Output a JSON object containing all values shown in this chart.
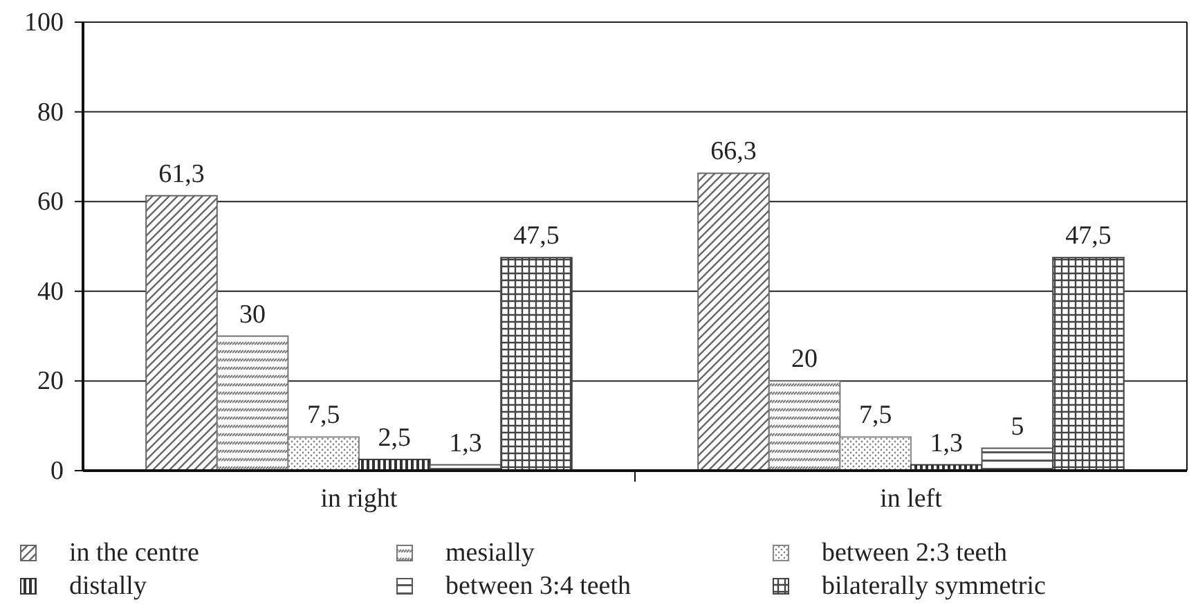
{
  "chart_data": {
    "type": "bar",
    "categories": [
      "in right",
      "in left"
    ],
    "series": [
      {
        "name": "in the centre",
        "color": "#666666",
        "values": [
          61.3,
          66.3
        ],
        "value_labels": [
          "61,3",
          "66,3"
        ]
      },
      {
        "name": "mesially",
        "color": "#777777",
        "values": [
          30,
          20
        ],
        "value_labels": [
          "30",
          "20"
        ]
      },
      {
        "name": "between 2:3 teeth",
        "color": "#888888",
        "values": [
          7.5,
          7.5
        ],
        "value_labels": [
          "7,5",
          "7,5"
        ]
      },
      {
        "name": "distally",
        "color": "#333333",
        "values": [
          2.5,
          1.3
        ],
        "value_labels": [
          "2,5",
          "1,3"
        ]
      },
      {
        "name": "between 3:4 teeth",
        "color": "#555555",
        "values": [
          1.3,
          5
        ],
        "value_labels": [
          "1,3",
          "5"
        ]
      },
      {
        "name": "bilaterally symmetric",
        "color": "#444444",
        "values": [
          47.5,
          47.5
        ],
        "value_labels": [
          "47,5",
          "47,5"
        ]
      }
    ],
    "ylim": [
      0,
      100
    ],
    "yticks": [
      0,
      20,
      40,
      60,
      80,
      100
    ],
    "grid": "y",
    "legend": "bottom"
  }
}
